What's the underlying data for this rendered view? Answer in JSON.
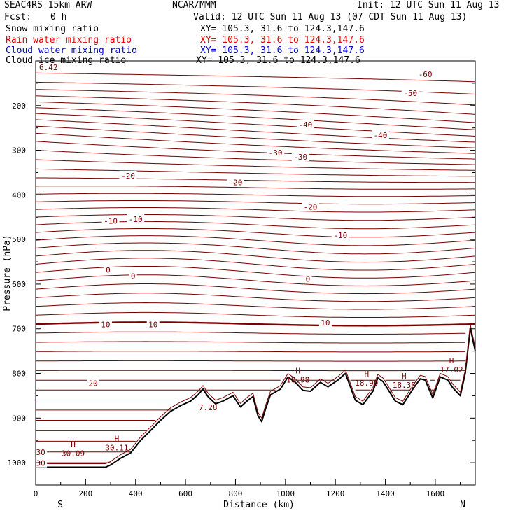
{
  "header": {
    "model": "SEAC4RS 15km ARW",
    "org": "NCAR/MMM",
    "init": "Init: 12 UTC Sun 11 Aug 13",
    "fcst_label": "Fcst:",
    "fcst_value": "0 h",
    "valid": "Valid: 12 UTC Sun 11 Aug 13 (07 CDT Sun 11 Aug 13)"
  },
  "fields": [
    {
      "name": "Snow mixing ratio",
      "xy": "XY= 105.3, 31.6 to 124.3,147.6",
      "color": "#000000"
    },
    {
      "name": "Rain water mixing ratio",
      "xy": "XY= 105.3, 31.6 to 124.3,147.6",
      "color": "#e60000"
    },
    {
      "name": "Cloud water mixing ratio",
      "xy": "XY= 105.3, 31.6 to 124.3,147.6",
      "color": "#0000e6"
    },
    {
      "name": "Cloud ice mixing ratio",
      "xy": "XY= 105.3, 31.6 to 124.3,147.6",
      "color": "#000000"
    }
  ],
  "colors": {
    "contour": "#7a0000",
    "terrain": "#000000"
  },
  "chart_data": {
    "type": "line",
    "xlabel": "Distance (km)",
    "ylabel": "Pressure (hPa)",
    "xlim": [
      0,
      1760
    ],
    "ylim": [
      1050,
      100
    ],
    "x_ticks": [
      "0",
      "200",
      "400",
      "600",
      "800",
      "1000",
      "1200",
      "1400",
      "1600"
    ],
    "y_ticks": [
      "200",
      "300",
      "400",
      "500",
      "600",
      "700",
      "800",
      "900",
      "1000"
    ],
    "corner_left": "S",
    "corner_right": "N",
    "top_left_value": "6.42",
    "contour_labels": [
      {
        "text": "-60",
        "x": 1560,
        "p": 130
      },
      {
        "text": "-50",
        "x": 1500,
        "p": 172
      },
      {
        "text": "-40",
        "x": 1080,
        "p": 243
      },
      {
        "text": "-40",
        "x": 1380,
        "p": 266
      },
      {
        "text": "-30",
        "x": 960,
        "p": 305
      },
      {
        "text": "-30",
        "x": 1060,
        "p": 315
      },
      {
        "text": "-20",
        "x": 370,
        "p": 357
      },
      {
        "text": "-20",
        "x": 800,
        "p": 372
      },
      {
        "text": "-20",
        "x": 1100,
        "p": 427
      },
      {
        "text": "-10",
        "x": 300,
        "p": 458
      },
      {
        "text": "-10",
        "x": 400,
        "p": 454
      },
      {
        "text": "-10",
        "x": 1220,
        "p": 490
      },
      {
        "text": "0",
        "x": 290,
        "p": 568
      },
      {
        "text": "0",
        "x": 390,
        "p": 582
      },
      {
        "text": "0",
        "x": 1090,
        "p": 588
      },
      {
        "text": "10",
        "x": 280,
        "p": 690
      },
      {
        "text": "10",
        "x": 470,
        "p": 690
      },
      {
        "text": "10",
        "x": 1160,
        "p": 686
      },
      {
        "text": "20",
        "x": 230,
        "p": 822
      },
      {
        "text": "30",
        "x": 20,
        "p": 976
      },
      {
        "text": "30",
        "x": 20,
        "p": 1001
      }
    ],
    "maxima": [
      {
        "letter": "H",
        "value": "30.09",
        "x": 150,
        "p": 968
      },
      {
        "letter": "H",
        "value": "30.11",
        "x": 325,
        "p": 955
      },
      {
        "letter": "",
        "value": "7.28",
        "x": 690,
        "p": 865
      },
      {
        "letter": "H",
        "value": "18.98",
        "x": 1050,
        "p": 803
      },
      {
        "letter": "H",
        "value": "18.99",
        "x": 1325,
        "p": 810
      },
      {
        "letter": "H",
        "value": "18.35",
        "x": 1475,
        "p": 815
      },
      {
        "letter": "H",
        "value": "17.02",
        "x": 1665,
        "p": 780
      }
    ],
    "terrain": {
      "x": [
        0,
        280,
        300,
        340,
        380,
        420,
        460,
        500,
        540,
        580,
        620,
        650,
        670,
        690,
        720,
        750,
        790,
        820,
        850,
        870,
        890,
        905,
        920,
        940,
        980,
        1010,
        1040,
        1070,
        1100,
        1140,
        1170,
        1210,
        1240,
        1280,
        1310,
        1350,
        1370,
        1390,
        1410,
        1440,
        1470,
        1510,
        1540,
        1560,
        1590,
        1620,
        1650,
        1670,
        1700,
        1720,
        1740,
        1760
      ],
      "p": [
        1010,
        1010,
        1005,
        990,
        978,
        950,
        928,
        905,
        885,
        872,
        862,
        848,
        835,
        852,
        868,
        862,
        850,
        875,
        860,
        852,
        895,
        908,
        880,
        848,
        835,
        808,
        820,
        838,
        840,
        820,
        830,
        815,
        800,
        860,
        870,
        840,
        810,
        818,
        835,
        862,
        870,
        835,
        812,
        815,
        855,
        808,
        815,
        832,
        850,
        800,
        698,
        750
      ]
    }
  }
}
